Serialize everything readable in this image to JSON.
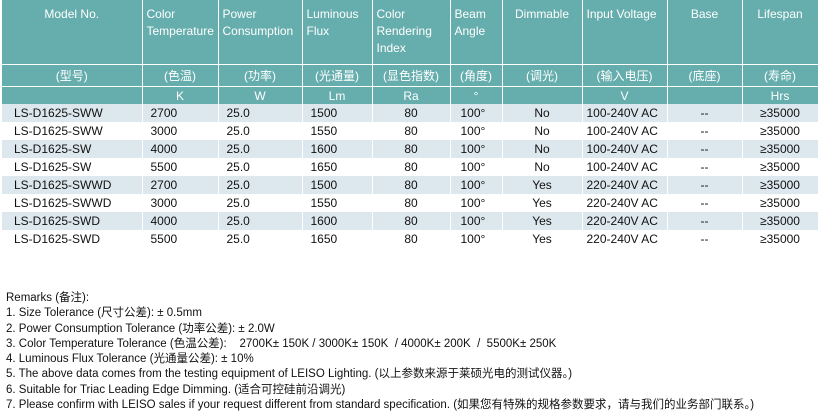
{
  "table": {
    "header": [
      "Model No.",
      "Color Temperature",
      "Power Consumption",
      "Luminous Flux",
      "Color Rendering Index",
      "Beam Angle",
      "Dimmable",
      "Input Voltage",
      "Base",
      "Lifespan"
    ],
    "chinese": [
      "(型号)",
      "(色温)",
      "(功率)",
      "(光通量)",
      "(显色指数)",
      "(角度)",
      "(调光)",
      "(输入电压)",
      "(底座)",
      "(寿命)"
    ],
    "units": [
      "",
      "K",
      "W",
      "Lm",
      "Ra",
      "°",
      "",
      "V",
      "",
      "Hrs"
    ],
    "rows": [
      [
        "LS-D1625-SWW",
        "2700",
        "25.0",
        "1500",
        "80",
        "100°",
        "No",
        "100-240V AC",
        "--",
        "≥35000"
      ],
      [
        "LS-D1625-SWW",
        "3000",
        "25.0",
        "1550",
        "80",
        "100°",
        "No",
        "100-240V AC",
        "--",
        "≥35000"
      ],
      [
        "LS-D1625-SW",
        "4000",
        "25.0",
        "1600",
        "80",
        "100°",
        "No",
        "100-240V AC",
        "--",
        "≥35000"
      ],
      [
        "LS-D1625-SW",
        "5500",
        "25.0",
        "1650",
        "80",
        "100°",
        "No",
        "100-240V AC",
        "--",
        "≥35000"
      ],
      [
        "LS-D1625-SWWD",
        "2700",
        "25.0",
        "1500",
        "80",
        "100°",
        "Yes",
        "220-240V AC",
        "--",
        "≥35000"
      ],
      [
        "LS-D1625-SWWD",
        "3000",
        "25.0",
        "1550",
        "80",
        "100°",
        "Yes",
        "220-240V AC",
        "--",
        "≥35000"
      ],
      [
        "LS-D1625-SWD",
        "4000",
        "25.0",
        "1600",
        "80",
        "100°",
        "Yes",
        "220-240V AC",
        "--",
        "≥35000"
      ],
      [
        "LS-D1625-SWD",
        "5500",
        "25.0",
        "1650",
        "80",
        "100°",
        "Yes",
        "220-240V AC",
        "--",
        "≥35000"
      ]
    ]
  },
  "remarks": {
    "title": "Remarks (备注):",
    "items": [
      "1. Size Tolerance (尺寸公差): ± 0.5mm",
      "2. Power Consumption Tolerance (功率公差): ± 2.0W",
      "3. Color Temperature Tolerance (色温公差):    2700K± 150K / 3000K± 150K  / 4000K± 200K  /  5500K± 250K",
      "4. Luminous Flux Tolerance (光通量公差): ± 10%",
      "5. The above data comes from the testing equipment of LEISO Lighting. (以上参数来源于莱硕光电的测试仪器。)",
      "6. Suitable for Triac Leading Edge Dimming. (适合可控硅前沿调光)",
      "7. Please confirm with LEISO sales if your request different from standard specification. (如果您有特殊的规格参数要求，请与我们的业务部门联系。)"
    ]
  }
}
